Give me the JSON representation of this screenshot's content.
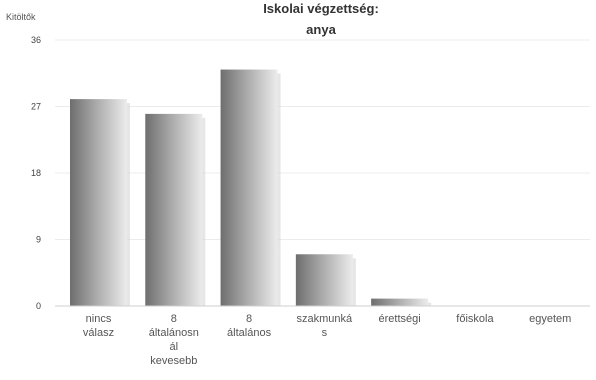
{
  "chart_data": {
    "type": "bar",
    "title_lines": [
      "Iskolai végzettség:",
      "anya"
    ],
    "ylabel": "Kitöltők",
    "xlabel": "",
    "ylim": [
      0,
      36
    ],
    "yticks": [
      0,
      9,
      18,
      27,
      36
    ],
    "grid": true,
    "categories": [
      [
        "nincs",
        "válasz"
      ],
      [
        "8",
        "általánosn",
        "ál",
        "kevesebb"
      ],
      [
        "8",
        "általános"
      ],
      [
        "szakmunká",
        "s"
      ],
      [
        "érettségi"
      ],
      [
        "főiskola"
      ],
      [
        "egyetem"
      ]
    ],
    "values": [
      28,
      26,
      32,
      7,
      1,
      0,
      0
    ]
  }
}
